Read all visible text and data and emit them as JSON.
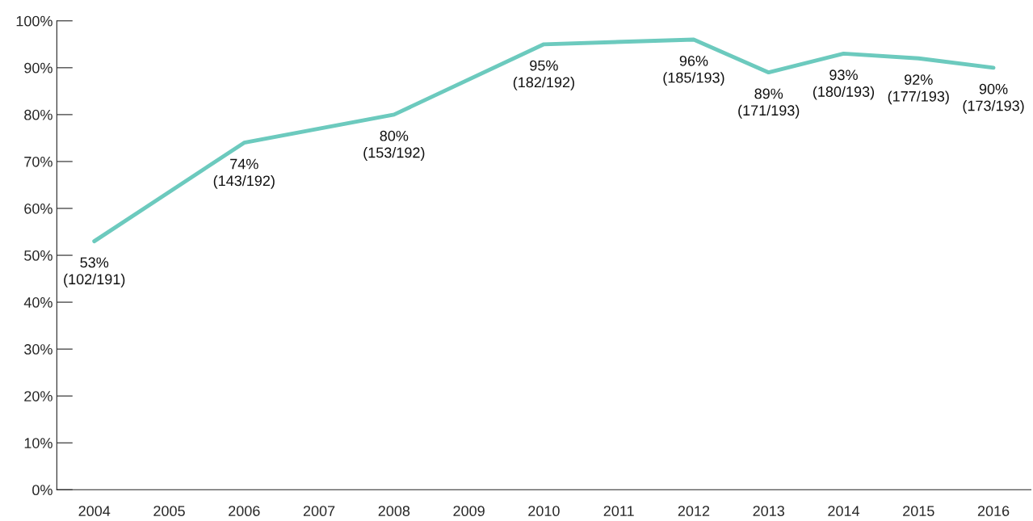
{
  "chart_data": {
    "type": "line",
    "categories": [
      "2004",
      "2005",
      "2006",
      "2007",
      "2008",
      "2009",
      "2010",
      "2011",
      "2012",
      "2013",
      "2014",
      "2015",
      "2016"
    ],
    "series": [
      {
        "color": "#6ccabe",
        "values": [
          53,
          null,
          74,
          null,
          80,
          null,
          95,
          null,
          96,
          89,
          93,
          92,
          90
        ],
        "value_labels": [
          "53%\n(102/191)",
          null,
          "74%\n(143/192)",
          null,
          "80%\n(153/192)",
          null,
          "95%\n(182/192)",
          null,
          "96%\n(185/193)",
          "89%\n(171/193)",
          "93%\n(180/193)",
          "92%\n(177/193)",
          "90%\n(173/193)"
        ]
      }
    ],
    "ylim": [
      0,
      100
    ],
    "yticks": [
      {
        "value": 0,
        "label": "0%"
      },
      {
        "value": 10,
        "label": "10%"
      },
      {
        "value": 20,
        "label": "20%"
      },
      {
        "value": 30,
        "label": "30%"
      },
      {
        "value": 40,
        "label": "40%"
      },
      {
        "value": 50,
        "label": "50%"
      },
      {
        "value": 60,
        "label": "60%"
      },
      {
        "value": 70,
        "label": "70%"
      },
      {
        "value": 80,
        "label": "80%"
      },
      {
        "value": 90,
        "label": "90%"
      },
      {
        "value": 100,
        "label": "100%"
      }
    ],
    "grid": false,
    "legend": false,
    "marker": "none",
    "line_style": "solid"
  }
}
